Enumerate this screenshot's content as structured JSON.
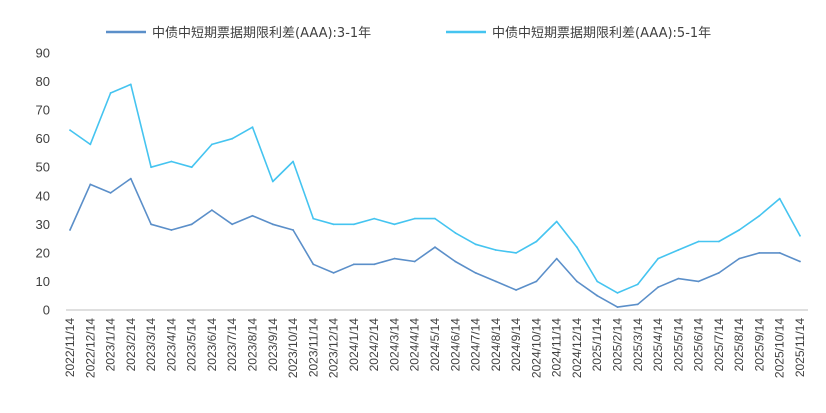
{
  "chart_data": {
    "type": "line",
    "title": "",
    "xlabel": "",
    "ylabel": "",
    "ylim": [
      0,
      90
    ],
    "yticks": [
      0,
      10,
      20,
      30,
      40,
      50,
      60,
      70,
      80,
      90
    ],
    "grid": false,
    "legend_position": "top",
    "categories": [
      "2022/11/14",
      "2022/12/14",
      "2023/1/14",
      "2023/2/14",
      "2023/3/14",
      "2023/4/14",
      "2023/5/14",
      "2023/6/14",
      "2023/7/14",
      "2023/8/14",
      "2023/9/14",
      "2023/10/14",
      "2023/11/14",
      "2023/12/14",
      "2024/1/14",
      "2024/2/14",
      "2024/3/14",
      "2024/4/14",
      "2024/5/14",
      "2024/6/14",
      "2024/7/14",
      "2024/8/14",
      "2024/9/14",
      "2024/10/14",
      "2024/11/14",
      "2024/12/14",
      "2025/1/14",
      "2025/2/14",
      "2025/3/14",
      "2025/4/14",
      "2025/5/14",
      "2025/6/14",
      "2025/7/14",
      "2025/8/14",
      "2025/9/14",
      "2025/10/14",
      "2025/11/14"
    ],
    "series": [
      {
        "name": "中债中短期票据期限利差(AAA):3-1年",
        "color": "#5b8fc9",
        "values": [
          28,
          44,
          41,
          46,
          30,
          28,
          30,
          35,
          30,
          33,
          30,
          28,
          16,
          13,
          16,
          16,
          18,
          17,
          22,
          17,
          13,
          10,
          7,
          10,
          18,
          10,
          5,
          1,
          2,
          8,
          11,
          10,
          13,
          18,
          20,
          20,
          17
        ]
      },
      {
        "name": "中债中短期票据期限利差(AAA):5-1年",
        "color": "#45c4f0",
        "values": [
          63,
          58,
          76,
          79,
          50,
          52,
          50,
          58,
          60,
          64,
          45,
          52,
          32,
          30,
          30,
          32,
          30,
          32,
          32,
          27,
          23,
          21,
          20,
          24,
          31,
          22,
          10,
          6,
          9,
          18,
          21,
          24,
          24,
          28,
          33,
          39,
          26
        ]
      }
    ]
  }
}
